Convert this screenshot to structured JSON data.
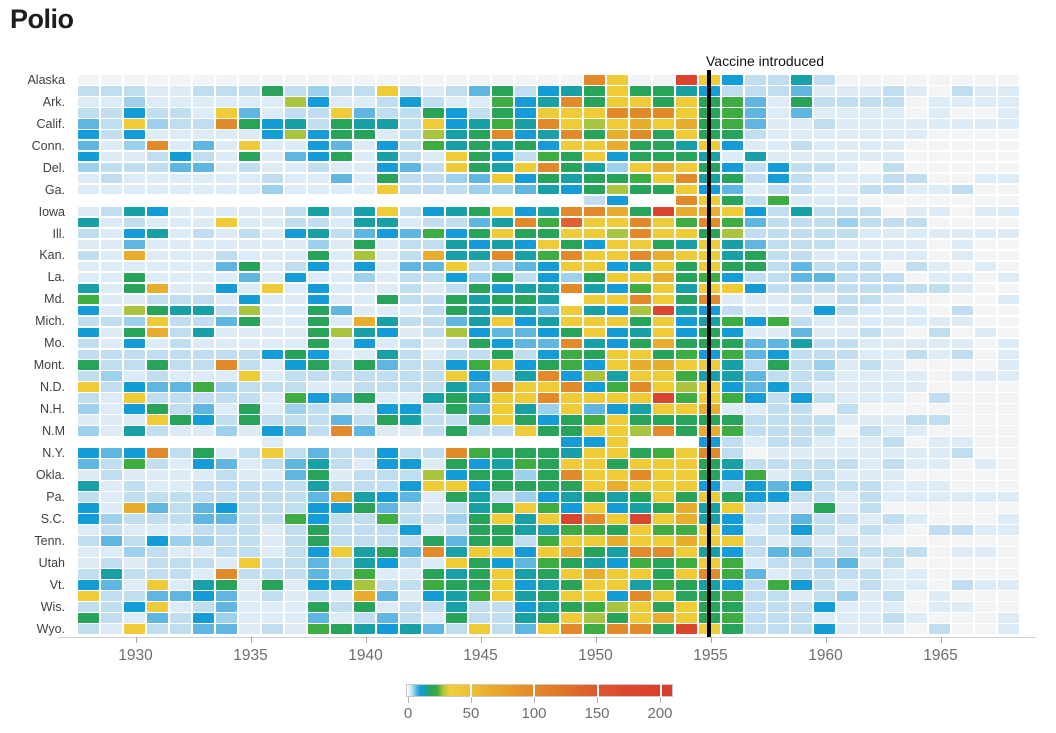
{
  "title": "Polio",
  "annotation": {
    "vaccine_label": "Vaccine introduced"
  },
  "chart_data": {
    "type": "heatmap",
    "title": "Polio",
    "x_years": {
      "start": 1928,
      "end": 1968
    },
    "x_ticks": [
      1930,
      1935,
      1940,
      1945,
      1950,
      1955,
      1960,
      1965
    ],
    "vaccine_line": {
      "label": "Vaccine introduced",
      "year": 1955
    },
    "legend_ticks": [
      0,
      50,
      100,
      150,
      200
    ],
    "legend_max": 210,
    "legend_gradient": [
      {
        "pos": 0,
        "color": "#ffffff"
      },
      {
        "pos": 1.5,
        "color": "#cfe7f6"
      },
      {
        "pos": 3.5,
        "color": "#5db8e2"
      },
      {
        "pos": 5,
        "color": "#189cd8"
      },
      {
        "pos": 7,
        "color": "#17a0a6"
      },
      {
        "pos": 9,
        "color": "#2aa55b"
      },
      {
        "pos": 11.5,
        "color": "#3ead41"
      },
      {
        "pos": 13.5,
        "color": "#a9c43e"
      },
      {
        "pos": 16,
        "color": "#f0d03a"
      },
      {
        "pos": 23.8,
        "color": "#ecc034"
      },
      {
        "pos": 35,
        "color": "#e8a42c"
      },
      {
        "pos": 47.6,
        "color": "#e28929"
      },
      {
        "pos": 60,
        "color": "#e0722a"
      },
      {
        "pos": 71.4,
        "color": "#de572d"
      },
      {
        "pos": 85,
        "color": "#dc462e"
      },
      {
        "pos": 100,
        "color": "#da3d2b"
      }
    ],
    "palette": {
      "n": {
        "value": null,
        "color": null
      },
      "A": {
        "value": 0,
        "color": "#f3f4f6"
      },
      "b": {
        "value": 1,
        "color": "#ddebf7"
      },
      "c": {
        "value": 3,
        "color": "#c1def1"
      },
      "d": {
        "value": 6,
        "color": "#9dd0ec"
      },
      "e": {
        "value": 10,
        "color": "#5fb6e1"
      },
      "f": {
        "value": 15,
        "color": "#149cd8"
      },
      "t": {
        "value": 19,
        "color": "#17a0a6"
      },
      "g": {
        "value": 23,
        "color": "#28a45a"
      },
      "G": {
        "value": 28,
        "color": "#3ead41"
      },
      "l": {
        "value": 33,
        "color": "#a9c43e"
      },
      "y": {
        "value": 48,
        "color": "#efcb38"
      },
      "Y": {
        "value": 72,
        "color": "#e9ad2d"
      },
      "O": {
        "value": 108,
        "color": "#e28929"
      },
      "r": {
        "value": 152,
        "color": "#e0602e"
      },
      "R": {
        "value": 205,
        "color": "#db4530"
      }
    },
    "rows": [
      {
        "label": "Alaska",
        "values": "AAAAAAAAAAAAAAAAAAAAAAOyAARyfcctcAAAAAAAA"
      },
      {
        "label": "",
        "values": "cccbbcccgcdccycbcegcftgyggtfcccebbbcbAcbb"
      },
      {
        "label": "Ark.",
        "values": "bbdbbbbbblfbbcfcbbGftOgyygygGebgccccAbbbb"
      },
      {
        "label": "",
        "values": "ccfccbyebccyeccgfcgfyyyOOOygGebebbbbAbAAb"
      },
      {
        "label": "Calif.",
        "values": "ecydccOgftcgttcyftGtOylyYyYgGebbcbbbbbbbb"
      },
      {
        "label": "",
        "values": "fcfbbbbbflfggbcltgOftOgYOgyggcbbbbbbbAAAA"
      },
      {
        "label": "Conn.",
        "values": "ebdObebybbfebfcGtgtgfyyYggtyfbbcbbbbAAAAA"
      },
      {
        "label": "",
        "values": "fbbcfcbgbefgbtcbygfcGgyfgggtbtbbbbbbAAAAA"
      },
      {
        "label": "Del.",
        "values": "dccceebcbbcbbfecygtyOgtdyYygfcfccbAcAAAAA"
      },
      {
        "label": "",
        "values": "bcbbbbbbcbbebgccdeyfgtggGyOtgcfcbbbccAAbb"
      },
      {
        "label": "Ga.",
        "values": "bbbbbbbbdbbbbycccddetfglggyfebccbbccbbcAA"
      },
      {
        "label": "",
        "values": "nnnnnnnnnnnnnnnnnnnnnncfnnOygcGbbbAAAAAAA"
      },
      {
        "label": "Iowa",
        "values": "bctfbbbbbctctycftgyftOOYgRYYyfctcccAbbAbb"
      },
      {
        "label": "",
        "values": "tbcbbbybbccbttbccetOGryyOyGOGecccdcccAAAA"
      },
      {
        "label": "Ill.",
        "values": "cbftbcbcbftcefeGfgyggyylOyyglcccccbbbbbbb"
      },
      {
        "label": "",
        "values": "bbebbbbbbbdbgbcctftfygfyygtytecccbbbbAbAA"
      },
      {
        "label": "Kan.",
        "values": "cbYbbbcbbbgblbcYttOtGOyyOYyytgccbbbbbAbAA"
      },
      {
        "label": "",
        "values": "bbbbbbegbcfbfbeeycdefyyftygyggcecccAcbAbA"
      },
      {
        "label": "La.",
        "values": "bbgbbbbebfbbdbccfdgcfdgyyYgGfcceecccAbbAb"
      },
      {
        "label": "",
        "values": "tbgYbbfbybfbbbcbcgfttOtfGytyyfccccccccbAA"
      },
      {
        "label": "Md.",
        "values": "Gbbcccbfbbfbbgccgtggt0yyOygObbbcbccbAAAAb"
      },
      {
        "label": "",
        "values": "fblgttclbbgebbbcgttteytflRtfcbbbfcbbbAcAA"
      },
      {
        "label": "Mich.",
        "values": "ccdyccegbbgbYtccetyftyyygyftGfGcbbbbbbbAA"
      },
      {
        "label": "",
        "values": "fbgYctbbbbgltfbclfeefgyftyfgfbbebbcbAcAbA"
      },
      {
        "label": "Mo.",
        "values": "cbfbcbbbbbgbfbcbcgfeeOtfgYgggeetccbbbbbAb"
      },
      {
        "label": "",
        "values": "ccccccccfgfbbtcbccgcfGgyygGfGefcccbbcbcAb"
      },
      {
        "label": "Mont.",
        "values": "gccgccOcbfgcgeccfGyfgGfyYYyytcgcdbcbAAAAb"
      },
      {
        "label": "",
        "values": "cdbcbbbybcccccccyfctOfltyyGttecccbbbbAbbb"
      },
      {
        "label": "N.D.",
        "values": "ycfeeGdcccbbccccteOyyOfGOylyfefcbbbbbAAAA"
      },
      {
        "label": "",
        "values": "cbycccccbGfegbbtgtyyOyyyyRGyGfcfcbbbAcAAA"
      },
      {
        "label": "N.H.",
        "values": "dbfgcebgbdcbbffcgeytdyeftyyYbbccAcAAAAAAA"
      },
      {
        "label": "",
        "values": "bbbygfcgcccecgtccgygfgGygggggccccbbbccAAA"
      },
      {
        "label": "N.M",
        "values": "dbtcbbdbfecOebbcgccyggyylOgYGccccAcbbAAAA"
      },
      {
        "label": "",
        "values": "nnnnnnnnbnnnnnnnnnnnnffynnnfcbccbbbcAbbAA"
      },
      {
        "label": "N.Y.",
        "values": "fefOcgbcyceccfccOGgggtyygGyOcAbbbbbbbbcAA"
      },
      {
        "label": "",
        "values": "ecGcbfebcetcbffbgftGgyygyyygtcccccbcbbAbA"
      },
      {
        "label": "Okla.",
        "values": "bcbbbbcbbegbccclfggdgOyyOyygfGbccbbbAAAAA"
      },
      {
        "label": "",
        "values": "tbcbbccccctcccfyyfggggyYyyyfcfefcccbbbAAA"
      },
      {
        "label": "Pa.",
        "values": "cbcccccccceYtfebgtcdftgtgygygffccbcbbbbbb"
      },
      {
        "label": "",
        "values": "fbYecefcccffgecbctgyGfyftgYtycbbgbcAAAAAA"
      },
      {
        "label": "S.C.",
        "values": "fdccceeccGfccGccdgytyROyRyYtfcceccbcbAAAb"
      },
      {
        "label": "",
        "values": "bcbbbcccbcgcccfbcggttGGgyGGyfbcfcbcbAccbb"
      },
      {
        "label": "Tenn.",
        "values": "cecfddccbcgccccgeggcGyyYyyYyycbcbcbAAAAAA"
      },
      {
        "label": "",
        "values": "bbdcbbccbcfytgeOtyyfyYgtOOytfceecccccAbbA"
      },
      {
        "label": "Utah",
        "values": "bcbcccbyccectfcbygfeGgtfGgGyGbccdebcAAAAA"
      },
      {
        "label": "",
        "values": "ctcccbOcccecGbbgtgytgyYyygyOGebccccbbAAAA"
      },
      {
        "label": "Vt.",
        "values": "febybtgbgbfflccGggyftgyytGgtfcGfcbcbbAcbb"
      },
      {
        "label": "",
        "values": "ycceefebcbcbYebftGytgyyfOyggGccbcdbcAbAAA"
      },
      {
        "label": "Wis.",
        "values": "ccfybcebbbgcgbcctccftgGlygyggcccfbbbAbbAA"
      },
      {
        "label": "",
        "values": "gcbecfdbbbebcecbgcctgylgyYygGcccbbbcbAAAb"
      },
      {
        "label": "Wyo.",
        "values": "cbycceebcbGgtftecyceyOGOOgRygcccfbbbAcAAb"
      }
    ]
  },
  "layout_colors": {
    "vaccine_line": "#000000",
    "axis_line": "#cfcfcf",
    "tick": "#a9a9a9",
    "tick_text": "#6e6e6e",
    "row_label_text": "#3f3f3f",
    "title_text": "#1e1e1e"
  }
}
